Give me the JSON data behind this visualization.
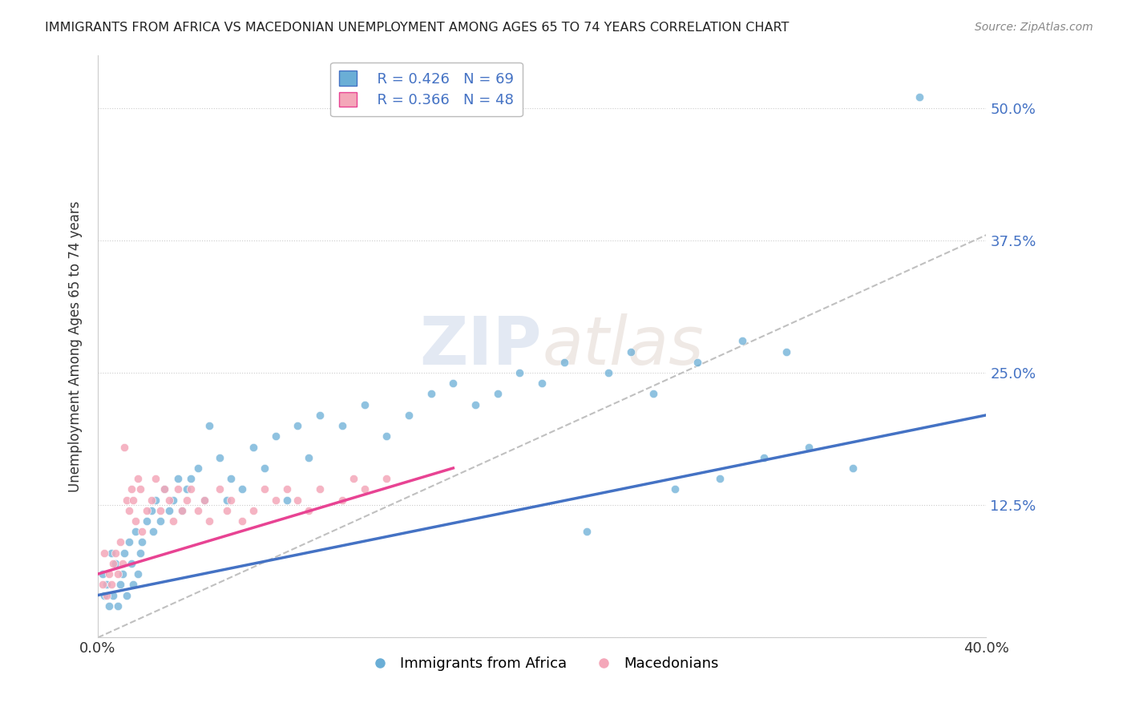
{
  "title": "IMMIGRANTS FROM AFRICA VS MACEDONIAN UNEMPLOYMENT AMONG AGES 65 TO 74 YEARS CORRELATION CHART",
  "source": "Source: ZipAtlas.com",
  "ylabel": "Unemployment Among Ages 65 to 74 years",
  "xlim": [
    0.0,
    0.4
  ],
  "ylim": [
    0.0,
    0.55
  ],
  "ytick_vals": [
    0.0,
    0.125,
    0.25,
    0.375,
    0.5
  ],
  "ytick_labels": [
    "",
    "12.5%",
    "25.0%",
    "37.5%",
    "50.0%"
  ],
  "watermark_zip": "ZIP",
  "watermark_atlas": "atlas",
  "legend_blue_R": "R = 0.426",
  "legend_blue_N": "N = 69",
  "legend_pink_R": "R = 0.366",
  "legend_pink_N": "N = 48",
  "blue_color": "#6aaed6",
  "pink_color": "#f4a7b9",
  "blue_line_color": "#4472c4",
  "pink_line_color": "#e84393",
  "trendline_gray": "#c0c0c0",
  "blue_scatter": [
    [
      0.002,
      0.06
    ],
    [
      0.003,
      0.04
    ],
    [
      0.004,
      0.05
    ],
    [
      0.005,
      0.03
    ],
    [
      0.006,
      0.08
    ],
    [
      0.007,
      0.04
    ],
    [
      0.008,
      0.07
    ],
    [
      0.009,
      0.03
    ],
    [
      0.01,
      0.05
    ],
    [
      0.011,
      0.06
    ],
    [
      0.012,
      0.08
    ],
    [
      0.013,
      0.04
    ],
    [
      0.014,
      0.09
    ],
    [
      0.015,
      0.07
    ],
    [
      0.016,
      0.05
    ],
    [
      0.017,
      0.1
    ],
    [
      0.018,
      0.06
    ],
    [
      0.019,
      0.08
    ],
    [
      0.02,
      0.09
    ],
    [
      0.022,
      0.11
    ],
    [
      0.024,
      0.12
    ],
    [
      0.025,
      0.1
    ],
    [
      0.026,
      0.13
    ],
    [
      0.028,
      0.11
    ],
    [
      0.03,
      0.14
    ],
    [
      0.032,
      0.12
    ],
    [
      0.034,
      0.13
    ],
    [
      0.036,
      0.15
    ],
    [
      0.038,
      0.12
    ],
    [
      0.04,
      0.14
    ],
    [
      0.042,
      0.15
    ],
    [
      0.045,
      0.16
    ],
    [
      0.048,
      0.13
    ],
    [
      0.05,
      0.2
    ],
    [
      0.055,
      0.17
    ],
    [
      0.058,
      0.13
    ],
    [
      0.06,
      0.15
    ],
    [
      0.065,
      0.14
    ],
    [
      0.07,
      0.18
    ],
    [
      0.075,
      0.16
    ],
    [
      0.08,
      0.19
    ],
    [
      0.085,
      0.13
    ],
    [
      0.09,
      0.2
    ],
    [
      0.095,
      0.17
    ],
    [
      0.1,
      0.21
    ],
    [
      0.11,
      0.2
    ],
    [
      0.12,
      0.22
    ],
    [
      0.13,
      0.19
    ],
    [
      0.14,
      0.21
    ],
    [
      0.15,
      0.23
    ],
    [
      0.16,
      0.24
    ],
    [
      0.17,
      0.22
    ],
    [
      0.18,
      0.23
    ],
    [
      0.19,
      0.25
    ],
    [
      0.2,
      0.24
    ],
    [
      0.21,
      0.26
    ],
    [
      0.22,
      0.1
    ],
    [
      0.23,
      0.25
    ],
    [
      0.24,
      0.27
    ],
    [
      0.25,
      0.23
    ],
    [
      0.26,
      0.14
    ],
    [
      0.27,
      0.26
    ],
    [
      0.28,
      0.15
    ],
    [
      0.29,
      0.28
    ],
    [
      0.3,
      0.17
    ],
    [
      0.31,
      0.27
    ],
    [
      0.32,
      0.18
    ],
    [
      0.34,
      0.16
    ],
    [
      0.37,
      0.51
    ]
  ],
  "pink_scatter": [
    [
      0.002,
      0.05
    ],
    [
      0.003,
      0.08
    ],
    [
      0.004,
      0.04
    ],
    [
      0.005,
      0.06
    ],
    [
      0.006,
      0.05
    ],
    [
      0.007,
      0.07
    ],
    [
      0.008,
      0.08
    ],
    [
      0.009,
      0.06
    ],
    [
      0.01,
      0.09
    ],
    [
      0.011,
      0.07
    ],
    [
      0.012,
      0.18
    ],
    [
      0.013,
      0.13
    ],
    [
      0.014,
      0.12
    ],
    [
      0.015,
      0.14
    ],
    [
      0.016,
      0.13
    ],
    [
      0.017,
      0.11
    ],
    [
      0.018,
      0.15
    ],
    [
      0.019,
      0.14
    ],
    [
      0.02,
      0.1
    ],
    [
      0.022,
      0.12
    ],
    [
      0.024,
      0.13
    ],
    [
      0.026,
      0.15
    ],
    [
      0.028,
      0.12
    ],
    [
      0.03,
      0.14
    ],
    [
      0.032,
      0.13
    ],
    [
      0.034,
      0.11
    ],
    [
      0.036,
      0.14
    ],
    [
      0.038,
      0.12
    ],
    [
      0.04,
      0.13
    ],
    [
      0.042,
      0.14
    ],
    [
      0.045,
      0.12
    ],
    [
      0.048,
      0.13
    ],
    [
      0.05,
      0.11
    ],
    [
      0.055,
      0.14
    ],
    [
      0.058,
      0.12
    ],
    [
      0.06,
      0.13
    ],
    [
      0.065,
      0.11
    ],
    [
      0.07,
      0.12
    ],
    [
      0.075,
      0.14
    ],
    [
      0.08,
      0.13
    ],
    [
      0.085,
      0.14
    ],
    [
      0.09,
      0.13
    ],
    [
      0.095,
      0.12
    ],
    [
      0.1,
      0.14
    ],
    [
      0.11,
      0.13
    ],
    [
      0.115,
      0.15
    ],
    [
      0.12,
      0.14
    ],
    [
      0.13,
      0.15
    ]
  ],
  "blue_trend_x": [
    0.0,
    0.4
  ],
  "blue_trend_y": [
    0.04,
    0.21
  ],
  "pink_trend_x": [
    0.0,
    0.16
  ],
  "pink_trend_y": [
    0.06,
    0.16
  ],
  "gray_trend_x": [
    0.0,
    0.4
  ],
  "gray_trend_y": [
    0.0,
    0.38
  ]
}
